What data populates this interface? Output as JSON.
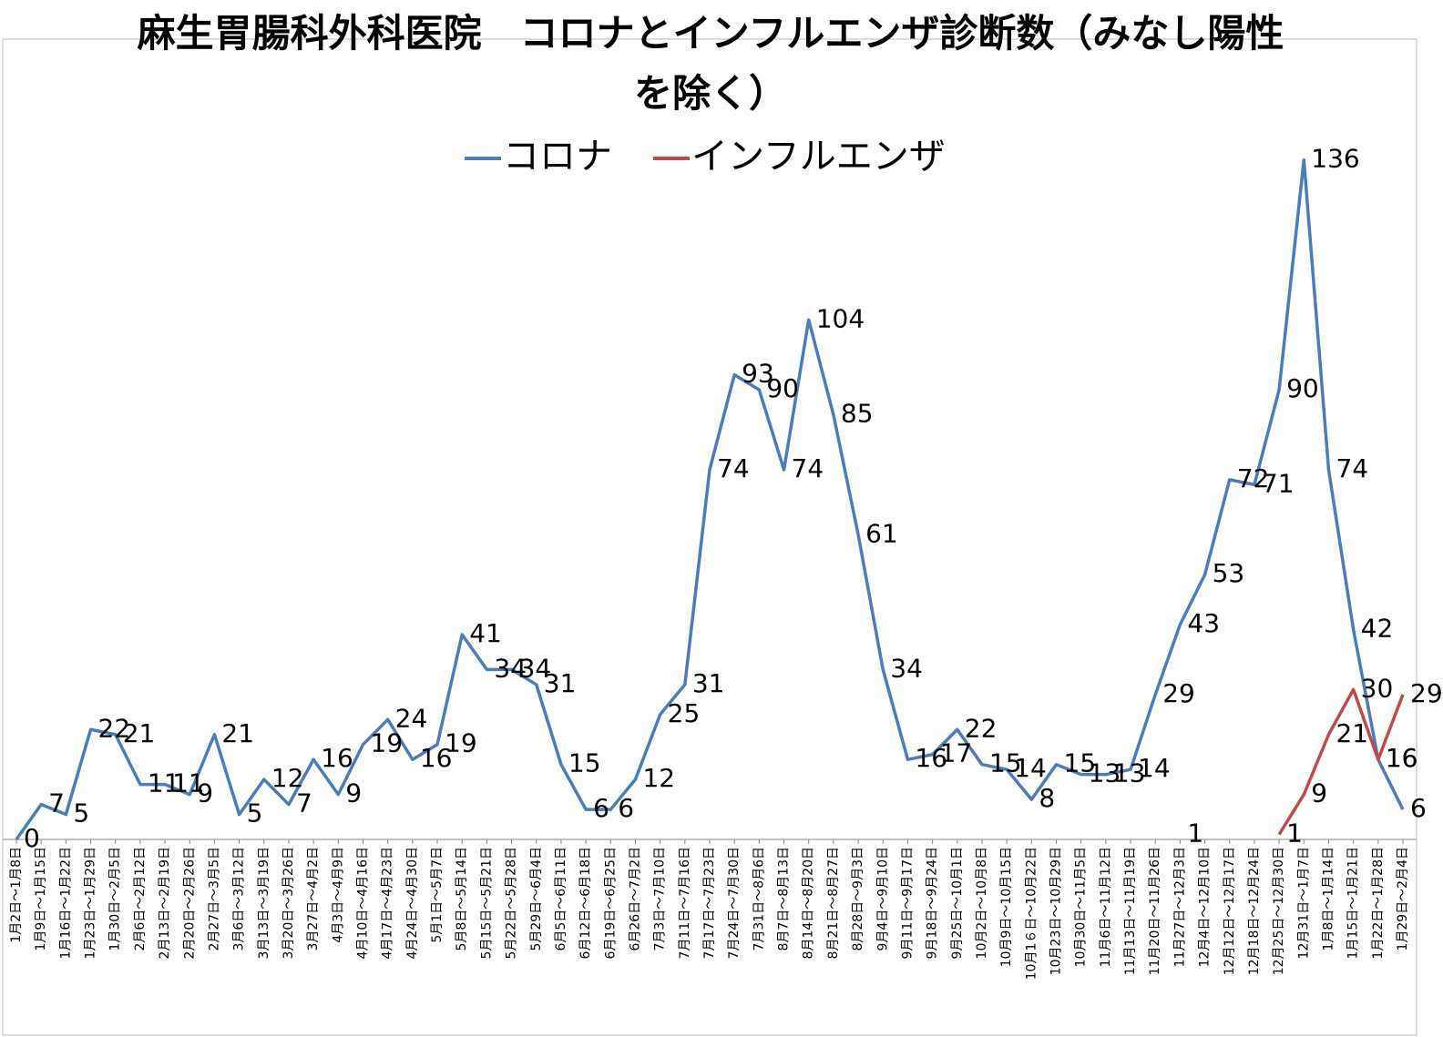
{
  "chart_data": {
    "type": "line",
    "title": "麻生胃腸科外科医院　コロナとインフルエンザ診断数（みなし陽性を除く）",
    "categories": [
      "1月2日～1月8日",
      "1月9日～1月15日",
      "1月16日～1月22日",
      "1月23日～1月29日",
      "1月30日～2月5日",
      "2月6日～2月12日",
      "2月13日～2月19日",
      "2月20日～2月26日",
      "2月27日～3月5日",
      "3月6日～3月12日",
      "3月13日～3月19日",
      "3月20日～3月26日",
      "3月27日～4月2日",
      "4月3日～4月9日",
      "4月10日～4月16日",
      "4月17日～4月23日",
      "4月24日～4月30日",
      "5月1日～5月7日",
      "5月8日～5月14日",
      "5月15日～5月21日",
      "5月22日～5月28日",
      "5月29日～6月4日",
      "6月5日～6月11日",
      "6月12日～6月18日",
      "6月19日～6月25日",
      "6月26日～7月2日",
      "7月3日～7月10日",
      "7月11日～7月16日",
      "7月17日～7月23日",
      "7月24日～7月30日",
      "7月31日～8月6日",
      "8月7日～8月13日",
      "8月14日～8月20日",
      "8月21日～8月27日",
      "8月28日～9月3日",
      "9月4日～9月10日",
      "9月11日～9月17日",
      "9月18日～9月24日",
      "9月25日～10月1日",
      "10月2日～10月8日",
      "10月9日～10月15日",
      "10月1６日～10月22日",
      "10月23日～10月29日",
      "10月30日～11月5日",
      "11月6日～11月12日",
      "11月13日～11月19日",
      "11月20日～11月26日",
      "11月27日～12月3日",
      "12月4日～12月10日",
      "12月12日～12月17日",
      "12月18日～12月24日",
      "12月25日～12月30日",
      "12月31日～1月7日",
      "1月8日～1月14日",
      "1月15日～1月21日",
      "1月22日～1月28日",
      "1月29日～2月4日"
    ],
    "series": [
      {
        "name": "コロナ",
        "color": "#4a7ebb",
        "values": [
          0,
          7,
          5,
          22,
          21,
          11,
          11,
          9,
          21,
          5,
          12,
          7,
          16,
          9,
          19,
          24,
          16,
          19,
          41,
          34,
          34,
          31,
          15,
          6,
          6,
          12,
          25,
          31,
          74,
          93,
          90,
          74,
          104,
          85,
          61,
          34,
          16,
          17,
          22,
          15,
          14,
          8,
          15,
          13,
          13,
          14,
          29,
          43,
          53,
          72,
          71,
          90,
          136,
          74,
          42,
          16,
          6
        ]
      },
      {
        "name": "インフルエンザ",
        "color": "#be4b48",
        "values": [
          null,
          null,
          null,
          null,
          null,
          null,
          null,
          null,
          null,
          null,
          null,
          null,
          null,
          null,
          null,
          null,
          null,
          null,
          null,
          null,
          null,
          null,
          null,
          null,
          null,
          null,
          null,
          null,
          null,
          null,
          null,
          null,
          null,
          null,
          null,
          null,
          null,
          null,
          null,
          null,
          null,
          null,
          null,
          null,
          null,
          null,
          null,
          1,
          null,
          null,
          null,
          1,
          9,
          21,
          30,
          16,
          29
        ]
      }
    ],
    "ylim": [
      0,
      160
    ],
    "legend": "top"
  }
}
